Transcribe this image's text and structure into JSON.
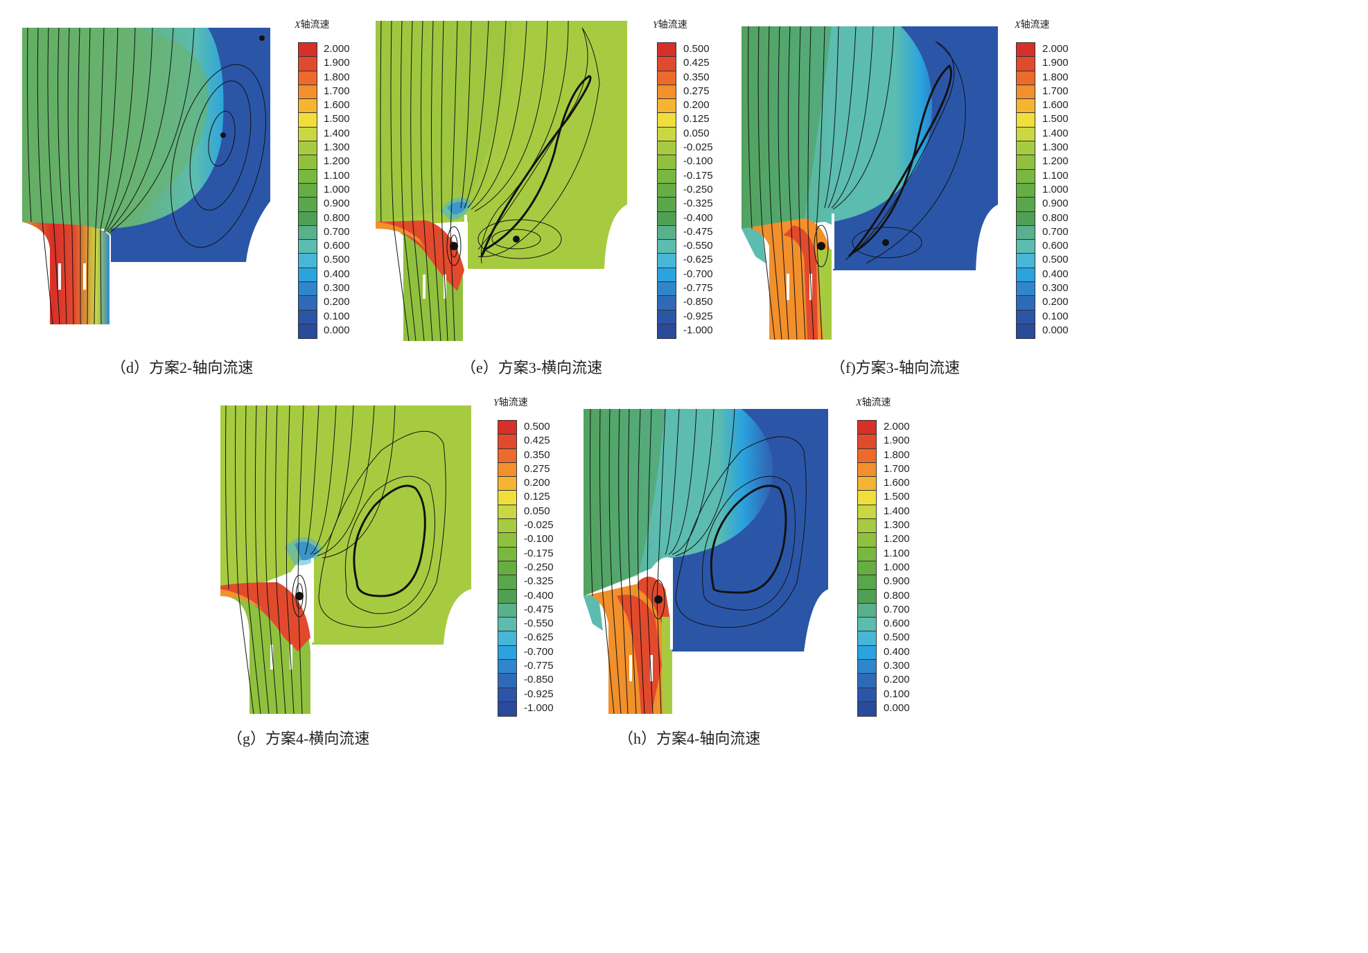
{
  "legends": {
    "x_axis": {
      "axis_letter": "X",
      "suffix": "轴流速",
      "values": [
        "2.000",
        "1.900",
        "1.800",
        "1.700",
        "1.600",
        "1.500",
        "1.400",
        "1.300",
        "1.200",
        "1.100",
        "1.000",
        "0.900",
        "0.800",
        "0.700",
        "0.600",
        "0.500",
        "0.400",
        "0.300",
        "0.200",
        "0.100",
        "0.000"
      ]
    },
    "y_axis": {
      "axis_letter": "Y",
      "suffix": "轴流速",
      "values": [
        "0.500",
        "0.425",
        "0.350",
        "0.275",
        "0.200",
        "0.125",
        "0.050",
        "-0.025",
        "-0.100",
        "-0.175",
        "-0.250",
        "-0.325",
        "-0.400",
        "-0.475",
        "-0.550",
        "-0.625",
        "-0.700",
        "-0.775",
        "-0.850",
        "-0.925",
        "-1.000"
      ]
    }
  },
  "colormap": [
    "#d7302a",
    "#e24a2e",
    "#ec6a2c",
    "#f2902c",
    "#f5b532",
    "#f0de3c",
    "#c9d742",
    "#a7cb40",
    "#8fc13e",
    "#78b841",
    "#66ad44",
    "#5aa64c",
    "#4f9f55",
    "#58b08c",
    "#5cbcb0",
    "#48b6d6",
    "#2aa3df",
    "#2f86cb",
    "#2f6ab7",
    "#2b56a8",
    "#2a4a9c"
  ],
  "panels": [
    {
      "id": "d",
      "caption": "（d）方案2-轴向流速",
      "legend": "x_axis"
    },
    {
      "id": "e",
      "caption": "（e）方案3-横向流速",
      "legend": "y_axis"
    },
    {
      "id": "f",
      "caption": "（f)方案3-轴向流速",
      "legend": "x_axis"
    },
    {
      "id": "g",
      "caption": "（g）方案4-横向流速",
      "legend": "y_axis"
    },
    {
      "id": "h",
      "caption": "（h）方案4-轴向流速",
      "legend": "x_axis"
    }
  ]
}
